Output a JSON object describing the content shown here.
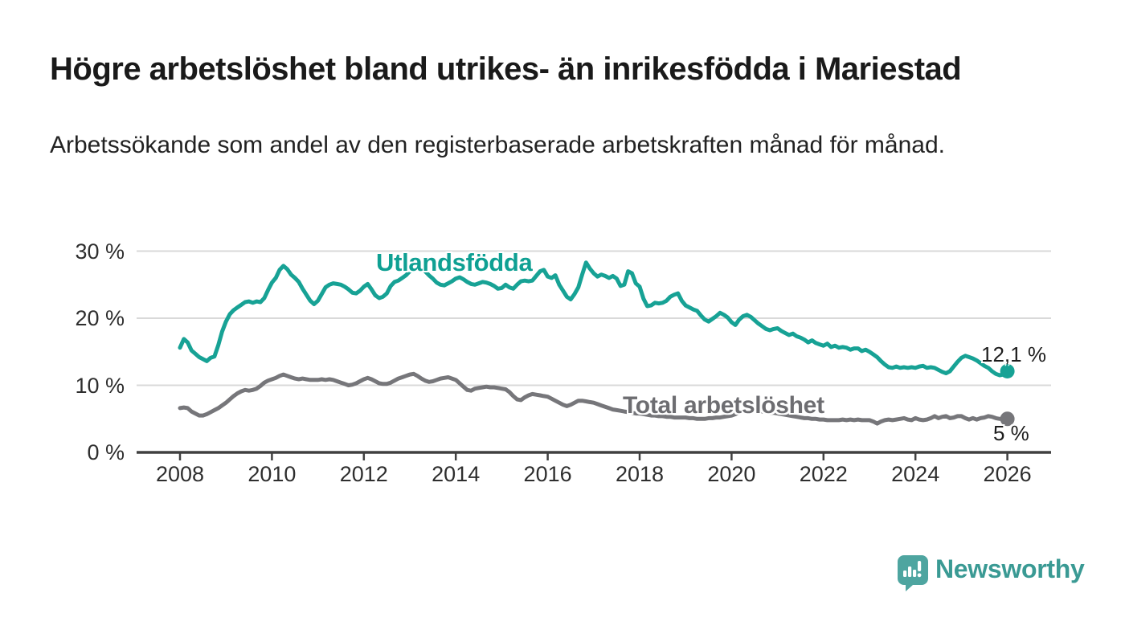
{
  "header": {
    "title": "Högre arbetslöshet bland utrikes- än inrikesfödda i Mariestad",
    "subtitle": "Arbetssökande som andel av den registerbaserade arbetskraften månad för månad."
  },
  "footer": {
    "brand": "Newsworthy",
    "logo_icon": "newsworthy-speech-bubble-barchart-icon"
  },
  "colors": {
    "series1_line": "#17a295",
    "series1_label": "#0fa093",
    "series2_line": "#76767a",
    "series2_label": "#6d6d71",
    "grid": "#d9d9d9",
    "axis": "#404040",
    "tick_text": "#2e2e2e",
    "value_text": "#1d1d1d",
    "logo_teal": "#4ea5a0",
    "brand_text": "#3a9a94"
  },
  "chart_data": {
    "type": "line",
    "title": "Högre arbetslöshet bland utrikes- än inrikesfödda i Mariestad",
    "subtitle": "Arbetssökande som andel av den registerbaserade arbetskraften månad för månad.",
    "xlabel": "",
    "ylabel": "",
    "grid": "horizontal",
    "ylim": [
      0,
      32
    ],
    "x_start_year": 2008,
    "x_step_months": 1,
    "x_ticks": {
      "years": [
        2008,
        2010,
        2012,
        2014,
        2016,
        2018,
        2020,
        2022,
        2024,
        2026
      ],
      "labels": [
        "2008",
        "2010",
        "2012",
        "2014",
        "2016",
        "2018",
        "2020",
        "2022",
        "2024",
        "2026"
      ]
    },
    "y_ticks": {
      "values": [
        0,
        10,
        20,
        30
      ],
      "labels": [
        "0 %",
        "10 %",
        "20 %",
        "30 %"
      ]
    },
    "legend_position": "inline-labels",
    "series": [
      {
        "name": "Utlandsfödda",
        "end_label": "12,1 %",
        "end_value": 12.1,
        "end_dot": true,
        "values": [
          15.6,
          16.9,
          16.4,
          15.2,
          14.7,
          14.2,
          13.9,
          13.6,
          14.1,
          14.3,
          16.0,
          18.0,
          19.5,
          20.6,
          21.2,
          21.6,
          22.0,
          22.4,
          22.5,
          22.3,
          22.5,
          22.4,
          23.0,
          24.2,
          25.3,
          26.0,
          27.2,
          27.8,
          27.3,
          26.5,
          26.0,
          25.4,
          24.4,
          23.5,
          22.6,
          22.1,
          22.6,
          23.6,
          24.6,
          25.0,
          25.2,
          25.1,
          25.0,
          24.7,
          24.3,
          23.8,
          23.7,
          24.1,
          24.7,
          25.1,
          24.3,
          23.4,
          23.0,
          23.2,
          23.7,
          24.8,
          25.4,
          25.6,
          26.0,
          26.4,
          27.0,
          27.5,
          27.8,
          27.6,
          27.0,
          26.4,
          25.9,
          25.3,
          25.0,
          24.9,
          25.2,
          25.5,
          25.9,
          26.1,
          25.8,
          25.4,
          25.1,
          25.0,
          25.2,
          25.4,
          25.3,
          25.1,
          24.8,
          24.4,
          24.5,
          25.0,
          24.6,
          24.4,
          25.0,
          25.5,
          25.6,
          25.5,
          25.6,
          26.3,
          27.0,
          27.2,
          26.2,
          26.0,
          26.4,
          25.0,
          24.1,
          23.2,
          22.8,
          23.6,
          24.6,
          26.5,
          28.3,
          27.4,
          26.7,
          26.2,
          26.5,
          26.3,
          26.0,
          26.3,
          25.9,
          24.8,
          25.0,
          27.0,
          26.7,
          25.2,
          24.7,
          22.9,
          21.8,
          21.9,
          22.3,
          22.2,
          22.3,
          22.6,
          23.2,
          23.5,
          23.7,
          22.6,
          21.9,
          21.6,
          21.3,
          21.1,
          20.4,
          19.8,
          19.5,
          19.9,
          20.3,
          20.8,
          20.5,
          20.1,
          19.4,
          19.0,
          19.8,
          20.3,
          20.5,
          20.2,
          19.7,
          19.2,
          18.8,
          18.4,
          18.2,
          18.4,
          18.5,
          18.1,
          17.8,
          17.5,
          17.7,
          17.3,
          17.1,
          16.8,
          16.4,
          16.7,
          16.3,
          16.1,
          15.9,
          16.2,
          15.7,
          15.9,
          15.6,
          15.7,
          15.6,
          15.3,
          15.5,
          15.5,
          15.1,
          15.3,
          15.0,
          14.6,
          14.2,
          13.6,
          13.1,
          12.7,
          12.6,
          12.8,
          12.6,
          12.7,
          12.6,
          12.7,
          12.6,
          12.8,
          12.9,
          12.6,
          12.7,
          12.6,
          12.3,
          12.0,
          11.8,
          12.1,
          12.8,
          13.5,
          14.1,
          14.4,
          14.2,
          14.0,
          13.7,
          13.3,
          12.9,
          12.6,
          12.1,
          11.7,
          11.5,
          11.6,
          12.1
        ]
      },
      {
        "name": "Total arbetslöshet",
        "end_label": "5 %",
        "end_value": 5,
        "end_dot": true,
        "values": [
          6.6,
          6.7,
          6.6,
          6.1,
          5.8,
          5.5,
          5.5,
          5.7,
          6.0,
          6.3,
          6.6,
          7.0,
          7.4,
          7.9,
          8.4,
          8.8,
          9.1,
          9.3,
          9.2,
          9.3,
          9.5,
          9.9,
          10.4,
          10.7,
          10.9,
          11.1,
          11.4,
          11.6,
          11.4,
          11.2,
          11.0,
          10.9,
          11.0,
          10.9,
          10.8,
          10.8,
          10.8,
          10.9,
          10.8,
          10.9,
          10.8,
          10.6,
          10.4,
          10.2,
          10.0,
          10.1,
          10.3,
          10.6,
          10.9,
          11.1,
          10.9,
          10.6,
          10.3,
          10.2,
          10.2,
          10.4,
          10.7,
          11.0,
          11.2,
          11.4,
          11.6,
          11.7,
          11.4,
          11.0,
          10.7,
          10.5,
          10.6,
          10.8,
          11.0,
          11.1,
          11.2,
          11.0,
          10.8,
          10.3,
          9.8,
          9.3,
          9.2,
          9.5,
          9.6,
          9.7,
          9.8,
          9.7,
          9.7,
          9.6,
          9.5,
          9.4,
          9.0,
          8.4,
          7.9,
          7.8,
          8.2,
          8.5,
          8.7,
          8.6,
          8.5,
          8.4,
          8.3,
          8.0,
          7.7,
          7.4,
          7.1,
          6.9,
          7.1,
          7.4,
          7.7,
          7.7,
          7.6,
          7.5,
          7.4,
          7.2,
          7.0,
          6.8,
          6.6,
          6.4,
          6.3,
          6.2,
          6.1,
          6.0,
          5.9,
          5.8,
          5.8,
          5.7,
          5.6,
          5.5,
          5.5,
          5.4,
          5.4,
          5.3,
          5.3,
          5.2,
          5.2,
          5.2,
          5.2,
          5.1,
          5.1,
          5.0,
          5.0,
          5.0,
          5.1,
          5.1,
          5.2,
          5.2,
          5.3,
          5.4,
          5.5,
          5.7,
          6.0,
          6.3,
          6.4,
          6.4,
          6.3,
          6.2,
          6.1,
          6.0,
          5.9,
          5.9,
          5.8,
          5.7,
          5.6,
          5.5,
          5.4,
          5.3,
          5.2,
          5.1,
          5.1,
          5.0,
          5.0,
          4.9,
          4.9,
          4.8,
          4.8,
          4.8,
          4.8,
          4.9,
          4.8,
          4.9,
          4.8,
          4.9,
          4.8,
          4.8,
          4.8,
          4.6,
          4.3,
          4.6,
          4.8,
          4.9,
          4.8,
          4.9,
          5.0,
          5.1,
          4.9,
          4.8,
          5.1,
          4.9,
          4.8,
          4.9,
          5.1,
          5.4,
          5.1,
          5.3,
          5.4,
          5.1,
          5.2,
          5.4,
          5.4,
          5.1,
          4.9,
          5.1,
          4.9,
          5.1,
          5.2,
          5.4,
          5.3,
          5.1,
          5.0,
          5.0,
          5.0
        ]
      }
    ]
  }
}
